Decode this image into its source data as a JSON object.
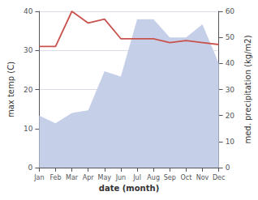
{
  "chart_data": {
    "type": "line",
    "categories": [
      "Jan",
      "Feb",
      "Mar",
      "Apr",
      "May",
      "Jun",
      "Jul",
      "Aug",
      "Sep",
      "Oct",
      "Nov",
      "Dec"
    ],
    "series": [
      {
        "type": "area",
        "color": "#c5cfe8",
        "axis": "y2",
        "values": [
          20,
          17,
          21,
          22,
          37,
          35,
          57,
          57,
          50,
          50,
          55,
          40
        ]
      },
      {
        "type": "line",
        "color": "#c9524e",
        "values": [
          31,
          31,
          40,
          37,
          38,
          33,
          33,
          33,
          32,
          32.5,
          32,
          31.5
        ]
      }
    ],
    "xlabel": "date (month)",
    "ylabel": "max temp (C)",
    "y2label": "med. precipitation (kg/m2)",
    "ylim": [
      0,
      40
    ],
    "yticks": [
      0,
      10,
      20,
      30,
      40
    ],
    "y2lim": [
      0,
      60
    ],
    "y2ticks": [
      0,
      10,
      20,
      30,
      40,
      50,
      60
    ],
    "grid": true
  }
}
